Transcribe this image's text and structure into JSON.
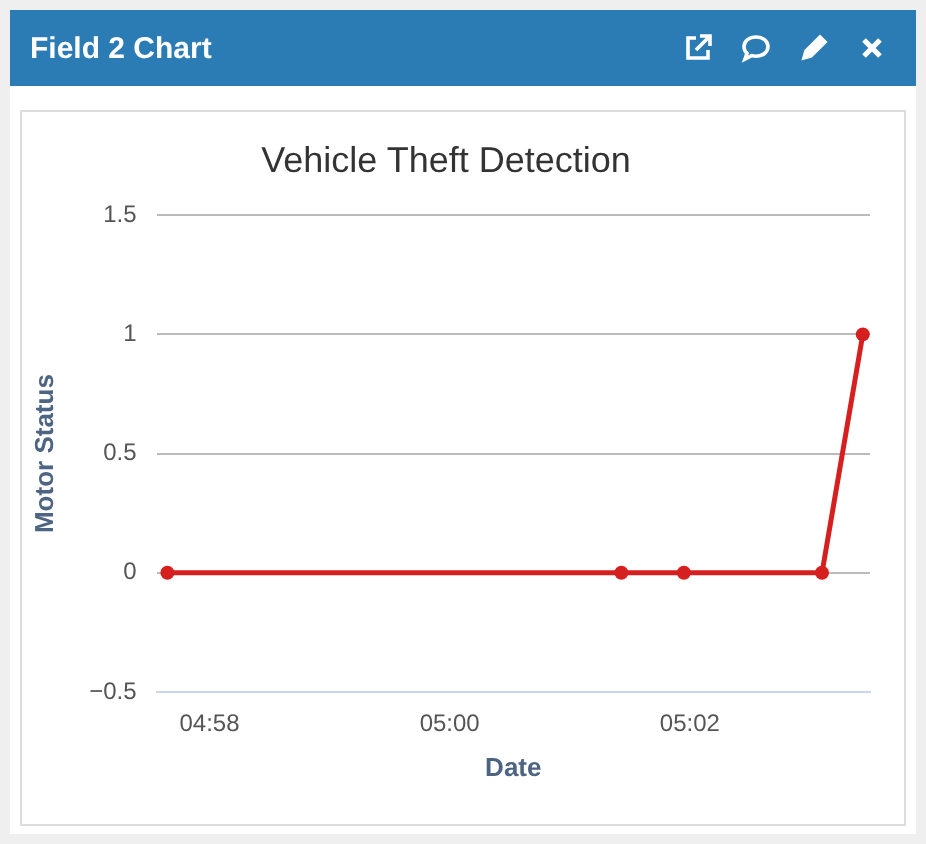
{
  "chart_data": {
    "type": "line",
    "title": "Vehicle Theft Detection",
    "xlabel": "Date",
    "ylabel": "Motor Status",
    "x": [
      4.96083,
      5.02383,
      5.0325,
      5.05167,
      5.05733
    ],
    "series": [
      {
        "color": "#d62020",
        "values": [
          0,
          0,
          0,
          0,
          1
        ]
      }
    ],
    "xlim": [
      4.95933,
      5.05833
    ],
    "xticks": [
      {
        "value": 4.96667,
        "label": "04:58"
      },
      {
        "value": 5.0,
        "label": "05:00"
      },
      {
        "value": 5.03333,
        "label": "05:02"
      }
    ],
    "ylim": [
      -0.5,
      1.5
    ],
    "yticks": [
      {
        "value": -0.5,
        "label": "−0.5"
      },
      0,
      0.5,
      1,
      1.5
    ],
    "annotations": [
      "Field 2 Chart"
    ],
    "grid": "y",
    "legend": false,
    "marker": "circle",
    "line_style": "solid"
  }
}
